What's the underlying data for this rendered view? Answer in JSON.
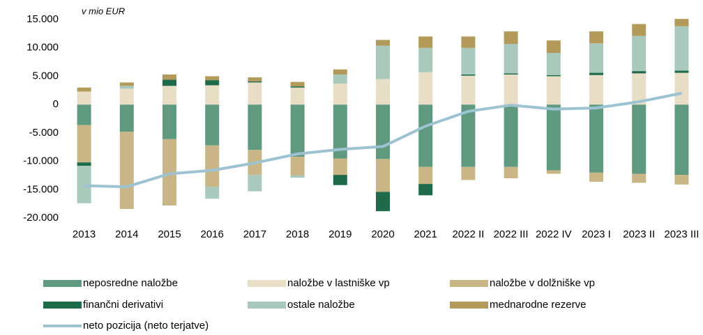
{
  "chart_data": {
    "type": "stacked_bar_line",
    "subtitle": "v mio EUR",
    "categories": [
      "2013",
      "2014",
      "2015",
      "2016",
      "2017",
      "2018",
      "2019",
      "2020",
      "2021",
      "2022 II",
      "2022 III",
      "2022 IV",
      "2023 I",
      "2023 II",
      "2023 III"
    ],
    "series": [
      {
        "name": "neposredne naložbe",
        "color": "#5f9a80",
        "values": [
          -3600,
          -4800,
          -6100,
          -7200,
          -8000,
          -9200,
          -9500,
          -9600,
          -11000,
          -11000,
          -11000,
          -11600,
          -12000,
          -12200,
          -12400
        ]
      },
      {
        "name": "naložbe v lastniške vp",
        "color": "#e8dec6",
        "values": [
          2300,
          2800,
          3300,
          3400,
          3900,
          3000,
          3700,
          4500,
          5700,
          5100,
          5300,
          5000,
          5200,
          5500,
          5600
        ]
      },
      {
        "name": "naložbe v dolžniške vp",
        "color": "#c9b586",
        "values": [
          -6600,
          -13600,
          -11700,
          -7300,
          -4400,
          -3300,
          -2900,
          -5800,
          -3000,
          -2300,
          -2000,
          -600,
          -1600,
          -1600,
          -1700
        ]
      },
      {
        "name": "finančni derivativi",
        "color": "#1f6a4a",
        "values": [
          -600,
          null,
          1100,
          900,
          200,
          200,
          -1800,
          -3400,
          -2000,
          200,
          200,
          200,
          400,
          400,
          400
        ]
      },
      {
        "name": "ostale naložbe",
        "color": "#a9c9bd",
        "values": [
          -6600,
          500,
          null,
          -2100,
          -2900,
          -400,
          1600,
          5900,
          4300,
          4700,
          5200,
          3900,
          5200,
          6200,
          7800
        ]
      },
      {
        "name": "mednarodne rezerve",
        "color": "#b39a5a",
        "values": [
          700,
          600,
          900,
          700,
          700,
          800,
          900,
          1000,
          2000,
          2000,
          2200,
          2200,
          2100,
          2100,
          1300
        ]
      }
    ],
    "line": {
      "name": "neto pozicija (neto terjatve)",
      "color": "#9dc3d2",
      "values": [
        -14300,
        -14500,
        -12200,
        -11600,
        -10300,
        -8700,
        -7900,
        -7400,
        -3800,
        -1200,
        -100,
        -800,
        -600,
        500,
        2000
      ]
    },
    "ylim": [
      -20000,
      15000
    ],
    "yticks": [
      {
        "value": -20000,
        "label": "-20.000"
      },
      {
        "value": -15000,
        "label": "-15.000"
      },
      {
        "value": -10000,
        "label": "-10.000"
      },
      {
        "value": -5000,
        "label": "-5.000"
      },
      0,
      {
        "value": 5000,
        "label": "5.000"
      },
      {
        "value": 10000,
        "label": "10.000"
      },
      {
        "value": 15000,
        "label": "15.000"
      }
    ],
    "grid": false,
    "legend": "bottom"
  }
}
